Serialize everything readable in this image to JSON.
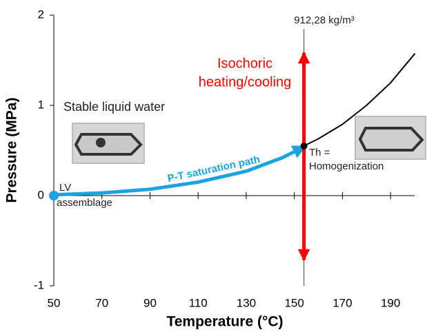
{
  "chart_data": {
    "type": "line",
    "x_label": "Temperature (°C)",
    "y_label": "Pressure (MPa)",
    "xlim": [
      50,
      200
    ],
    "ylim": [
      -1,
      2
    ],
    "xticks": [
      50,
      70,
      90,
      110,
      130,
      150,
      170,
      190
    ],
    "yticks": [
      -1,
      0,
      1,
      2
    ],
    "series": [
      {
        "name": "P-T saturation path",
        "color": "#1aa3e0",
        "x": [
          50,
          70,
          90,
          110,
          130,
          145,
          154
        ],
        "values": [
          0.01,
          0.03,
          0.07,
          0.15,
          0.27,
          0.42,
          0.54
        ]
      },
      {
        "color": "#000000",
        "x": [
          154,
          160,
          170,
          180,
          190,
          200
        ],
        "values": [
          0.55,
          0.63,
          0.79,
          1.0,
          1.25,
          1.57
        ]
      },
      {
        "color": "#ff0000",
        "x": [
          154,
          154
        ],
        "values": [
          -0.7,
          1.57
        ]
      }
    ],
    "markers": [
      {
        "x": 50,
        "y": 0,
        "color": "#1aa3e0"
      },
      {
        "x": 154,
        "y": 0.55,
        "color": "#000000"
      }
    ],
    "density_label": "912,28 kg/m³",
    "isochore_label": [
      "Isochoric",
      "heating/cooling"
    ],
    "region_label": "Stable liquid water",
    "th_label": [
      "Th =",
      "Homogenization"
    ],
    "lv_label": [
      "LV",
      "assemblage"
    ]
  }
}
